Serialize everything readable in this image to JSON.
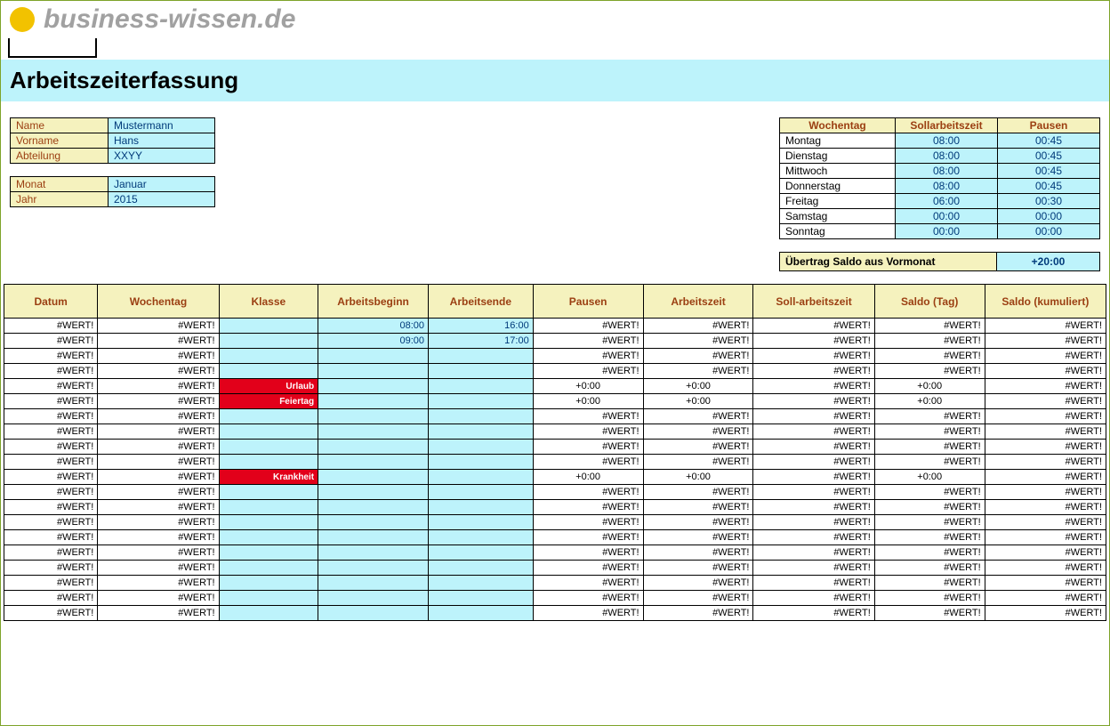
{
  "logo_text": "business-wissen.de",
  "page_title": "Arbeitszeiterfassung",
  "person": {
    "rows": [
      {
        "label": "Name",
        "value": "Mustermann"
      },
      {
        "label": "Vorname",
        "value": "Hans"
      },
      {
        "label": "Abteilung",
        "value": "XXYY"
      }
    ]
  },
  "period": {
    "rows": [
      {
        "label": "Monat",
        "value": "Januar"
      },
      {
        "label": "Jahr",
        "value": "2015"
      }
    ]
  },
  "week_header": [
    "Wochentag",
    "Sollarbeitszeit",
    "Pausen"
  ],
  "week": [
    {
      "day": "Montag",
      "soll": "08:00",
      "pause": "00:45"
    },
    {
      "day": "Dienstag",
      "soll": "08:00",
      "pause": "00:45"
    },
    {
      "day": "Mittwoch",
      "soll": "08:00",
      "pause": "00:45"
    },
    {
      "day": "Donnerstag",
      "soll": "08:00",
      "pause": "00:45"
    },
    {
      "day": "Freitag",
      "soll": "06:00",
      "pause": "00:30"
    },
    {
      "day": "Samstag",
      "soll": "00:00",
      "pause": "00:00"
    },
    {
      "day": "Sonntag",
      "soll": "00:00",
      "pause": "00:00"
    }
  ],
  "carry": {
    "label": "Übertrag Saldo aus Vormonat",
    "value": "+20:00"
  },
  "columns": [
    "Datum",
    "Wochentag",
    "Klasse",
    "Arbeitsbeginn",
    "Arbeitsende",
    "Pausen",
    "Arbeitszeit",
    "Soll-arbeitszeit",
    "Saldo (Tag)",
    "Saldo (kumuliert)"
  ],
  "err": "#WERT!",
  "rows": [
    {
      "klasse": "",
      "klasse_red": false,
      "begin": "08:00",
      "end": "16:00",
      "zero": false
    },
    {
      "klasse": "",
      "klasse_red": false,
      "begin": "09:00",
      "end": "17:00",
      "zero": false
    },
    {
      "klasse": "",
      "klasse_red": false,
      "begin": "",
      "end": "",
      "zero": false
    },
    {
      "klasse": "",
      "klasse_red": false,
      "begin": "",
      "end": "",
      "zero": false
    },
    {
      "klasse": "Urlaub",
      "klasse_red": true,
      "begin": "",
      "end": "",
      "zero": true
    },
    {
      "klasse": "Feiertag",
      "klasse_red": true,
      "begin": "",
      "end": "",
      "zero": true
    },
    {
      "klasse": "",
      "klasse_red": false,
      "begin": "",
      "end": "",
      "zero": false
    },
    {
      "klasse": "",
      "klasse_red": false,
      "begin": "",
      "end": "",
      "zero": false
    },
    {
      "klasse": "",
      "klasse_red": false,
      "begin": "",
      "end": "",
      "zero": false
    },
    {
      "klasse": "",
      "klasse_red": false,
      "begin": "",
      "end": "",
      "zero": false
    },
    {
      "klasse": "Krankheit",
      "klasse_red": true,
      "begin": "",
      "end": "",
      "zero": true
    },
    {
      "klasse": "",
      "klasse_red": false,
      "begin": "",
      "end": "",
      "zero": false
    },
    {
      "klasse": "",
      "klasse_red": false,
      "begin": "",
      "end": "",
      "zero": false
    },
    {
      "klasse": "",
      "klasse_red": false,
      "begin": "",
      "end": "",
      "zero": false
    },
    {
      "klasse": "",
      "klasse_red": false,
      "begin": "",
      "end": "",
      "zero": false
    },
    {
      "klasse": "",
      "klasse_red": false,
      "begin": "",
      "end": "",
      "zero": false
    },
    {
      "klasse": "",
      "klasse_red": false,
      "begin": "",
      "end": "",
      "zero": false
    },
    {
      "klasse": "",
      "klasse_red": false,
      "begin": "",
      "end": "",
      "zero": false
    },
    {
      "klasse": "",
      "klasse_red": false,
      "begin": "",
      "end": "",
      "zero": false
    },
    {
      "klasse": "",
      "klasse_red": false,
      "begin": "",
      "end": "",
      "zero": false
    }
  ],
  "zero_str": "+0:00",
  "colors": {
    "border_outer": "#7ea32a",
    "header_bg": "#f5f2be",
    "header_fg": "#9b3f12",
    "input_bg": "#bdf3fb",
    "input_fg": "#003a7a",
    "red_bg": "#e2001a",
    "logo_gray": "#a1a1a1",
    "logo_yellow": "#f2c200"
  }
}
